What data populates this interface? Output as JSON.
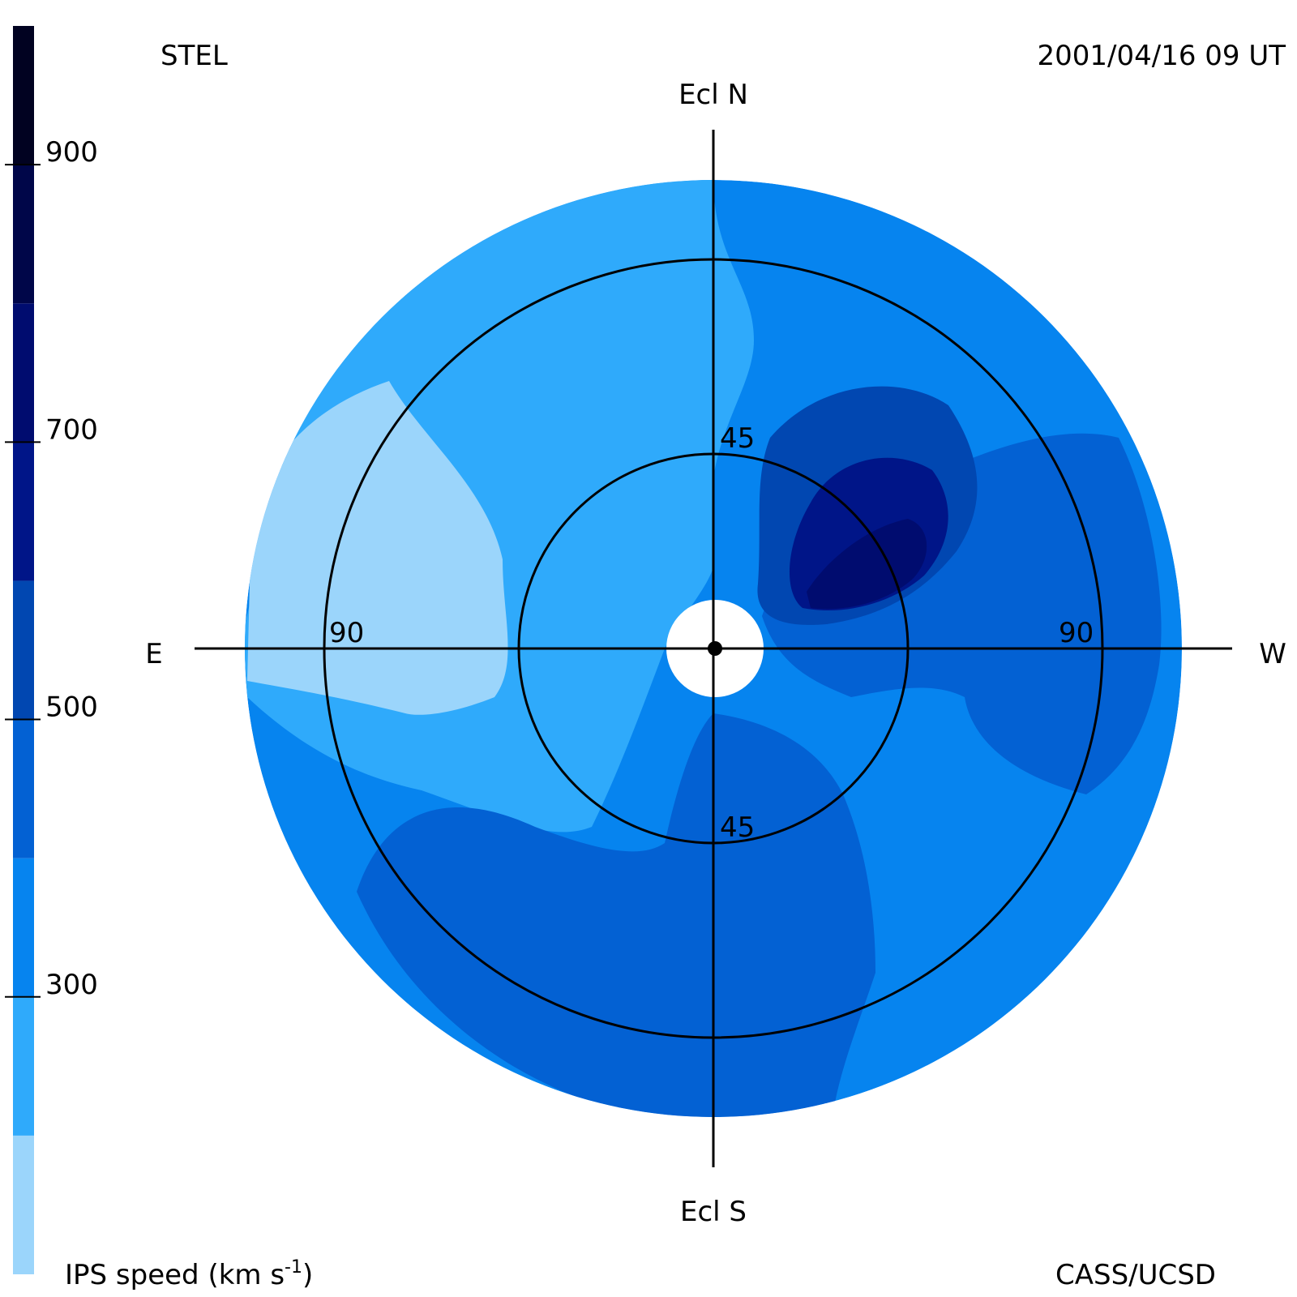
{
  "header": {
    "source": "STEL",
    "timestamp": "2001/04/16 09 UT",
    "credit": "CASS/UCSD"
  },
  "directions": {
    "north": "Ecl N",
    "south": "Ecl S",
    "east": "E",
    "west": "W"
  },
  "chart_data": {
    "type": "heatmap",
    "projection": "polar sky map (elongation rings)",
    "title": "",
    "colorbar": {
      "label_prefix": "IPS speed (km s",
      "label_exponent": "-1",
      "label_suffix": ")",
      "range": [
        100,
        1000
      ],
      "ticks": [
        300,
        500,
        700,
        900
      ],
      "levels": [
        {
          "min": 100,
          "max": 200,
          "color": "#9bd5fb"
        },
        {
          "min": 200,
          "max": 300,
          "color": "#2faafb"
        },
        {
          "min": 300,
          "max": 400,
          "color": "#0684ef"
        },
        {
          "min": 400,
          "max": 500,
          "color": "#0361d3"
        },
        {
          "min": 500,
          "max": 600,
          "color": "#0147b1"
        },
        {
          "min": 600,
          "max": 700,
          "color": "#001588"
        },
        {
          "min": 700,
          "max": 800,
          "color": "#000c6f"
        },
        {
          "min": 800,
          "max": 900,
          "color": "#000649"
        },
        {
          "min": 900,
          "max": 1000,
          "color": "#010221"
        }
      ]
    },
    "rings": [
      {
        "elongation": 45,
        "label": "45"
      },
      {
        "elongation": 90,
        "label": "90"
      }
    ],
    "field_speed_km_s": {
      "north_east": 250,
      "east_limb": 150,
      "north_west": 350,
      "west_center_max": 650,
      "south": 450,
      "south_east": 450
    }
  }
}
